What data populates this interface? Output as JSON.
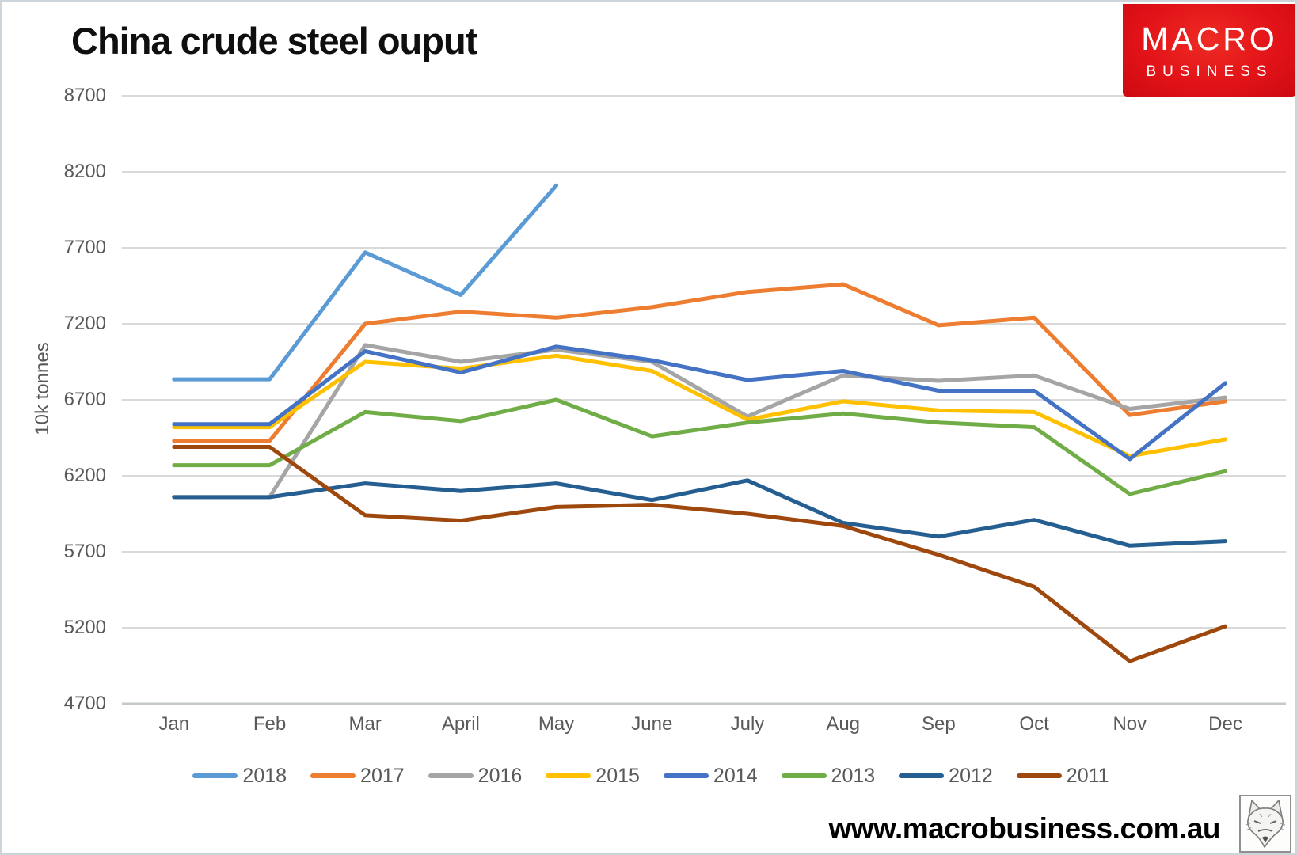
{
  "title": "China crude steel ouput",
  "logo": {
    "line1": "MACRO",
    "line2": "BUSINESS",
    "bg_color": "#e21318"
  },
  "footer": {
    "url": "www.macrobusiness.com.au"
  },
  "chart_data": {
    "type": "line",
    "title": "China crude steel ouput",
    "xlabel": "",
    "ylabel": "10k tonnes",
    "categories": [
      "Jan",
      "Feb",
      "Mar",
      "April",
      "May",
      "June",
      "July",
      "Aug",
      "Sep",
      "Oct",
      "Nov",
      "Dec"
    ],
    "y_ticks": [
      8700,
      8200,
      7700,
      7200,
      6700,
      6200,
      5700,
      5200,
      4700
    ],
    "ylim": [
      4700,
      8700
    ],
    "grid": true,
    "legend_position": "bottom",
    "series": [
      {
        "name": "2018",
        "color": "#5B9BD5",
        "values": [
          6835,
          6835,
          7670,
          7390,
          8110,
          null,
          null,
          null,
          null,
          null,
          null,
          null
        ]
      },
      {
        "name": "2017",
        "color": "#ED7D31",
        "values": [
          6430,
          6430,
          7200,
          7280,
          7240,
          7310,
          7410,
          7460,
          7190,
          7240,
          6600,
          6690
        ]
      },
      {
        "name": "2016",
        "color": "#A5A5A5",
        "values": [
          6060,
          6060,
          7060,
          6950,
          7030,
          6950,
          6590,
          6860,
          6825,
          6860,
          6640,
          6715
        ]
      },
      {
        "name": "2015",
        "color": "#FFC000",
        "values": [
          6520,
          6520,
          6950,
          6905,
          6990,
          6890,
          6570,
          6690,
          6630,
          6620,
          6330,
          6440
        ]
      },
      {
        "name": "2014",
        "color": "#4472C4",
        "values": [
          6540,
          6540,
          7020,
          6880,
          7050,
          6960,
          6830,
          6890,
          6760,
          6760,
          6310,
          6810
        ]
      },
      {
        "name": "2013",
        "color": "#70AD47",
        "values": [
          6270,
          6270,
          6620,
          6560,
          6700,
          6460,
          6550,
          6610,
          6550,
          6520,
          6080,
          6230
        ]
      },
      {
        "name": "2012",
        "color": "#255E91",
        "values": [
          6060,
          6060,
          6150,
          6100,
          6150,
          6040,
          6170,
          5890,
          5800,
          5910,
          5740,
          5770
        ]
      },
      {
        "name": "2011",
        "color": "#9E480E",
        "values": [
          6390,
          6390,
          5940,
          5905,
          5995,
          6010,
          5950,
          5870,
          5680,
          5470,
          4980,
          5210
        ]
      }
    ]
  }
}
